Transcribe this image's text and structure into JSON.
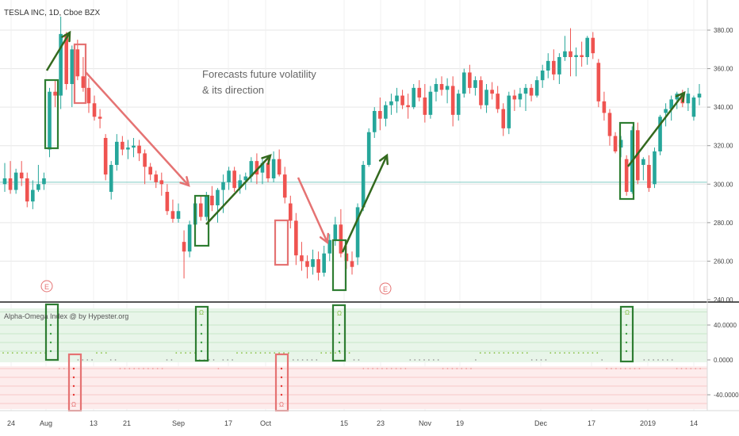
{
  "header": {
    "title": "TESLA INC, 1D, Cboe BZX"
  },
  "annotation": {
    "line1": "Forecasts future volatility",
    "line2": "& its direction"
  },
  "earnings_marker": "E",
  "indicator": {
    "title": "Alpha-Omega Index @ by Hypester.org",
    "alpha_symbol": "Ω",
    "omega_symbol": "Ω"
  },
  "colors": {
    "up": "#26a69a",
    "down": "#ef5350",
    "box_green": "#2e7d32",
    "box_red": "#e57373",
    "arrow_green": "#33691e",
    "arrow_red": "#e57373",
    "grid": "#e6e6e6",
    "price_line": "#80cbc4",
    "zone_green": "#e8f5e9",
    "zone_red": "#fdecec"
  },
  "chart_data": [
    {
      "type": "candlestick",
      "title": "TESLA INC, 1D, Cboe BZX",
      "x_tick_labels": [
        "24",
        "Aug",
        "13",
        "21",
        "Sep",
        "17",
        "Oct",
        "15",
        "23",
        "Nov",
        "19",
        "Dec",
        "17",
        "2019",
        "14"
      ],
      "y_tick_labels": [
        "380.00",
        "360.00",
        "340.00",
        "320.00",
        "300.00",
        "280.00",
        "260.00",
        "240.00"
      ],
      "ylim": [
        238,
        394
      ],
      "reference_line": 301,
      "grid": true,
      "candles": [
        {
          "o": 300,
          "h": 311,
          "l": 296,
          "c": 303
        },
        {
          "o": 303,
          "h": 312,
          "l": 295,
          "c": 297
        },
        {
          "o": 297,
          "h": 308,
          "l": 295,
          "c": 306
        },
        {
          "o": 306,
          "h": 312,
          "l": 299,
          "c": 303
        },
        {
          "o": 303,
          "h": 306,
          "l": 288,
          "c": 291
        },
        {
          "o": 291,
          "h": 302,
          "l": 287,
          "c": 297
        },
        {
          "o": 297,
          "h": 310,
          "l": 296,
          "c": 300
        },
        {
          "o": 300,
          "h": 306,
          "l": 297,
          "c": 303
        },
        {
          "o": 318,
          "h": 350,
          "l": 314,
          "c": 348
        },
        {
          "o": 348,
          "h": 354,
          "l": 340,
          "c": 346
        },
        {
          "o": 346,
          "h": 387,
          "l": 339,
          "c": 378
        },
        {
          "o": 378,
          "h": 379,
          "l": 349,
          "c": 352
        },
        {
          "o": 352,
          "h": 372,
          "l": 340,
          "c": 370
        },
        {
          "o": 370,
          "h": 375,
          "l": 354,
          "c": 356
        },
        {
          "o": 356,
          "h": 366,
          "l": 348,
          "c": 350
        },
        {
          "o": 350,
          "h": 355,
          "l": 337,
          "c": 342
        },
        {
          "o": 342,
          "h": 346,
          "l": 333,
          "c": 335
        },
        {
          "o": 335,
          "h": 339,
          "l": 329,
          "c": 334
        },
        {
          "o": 324,
          "h": 326,
          "l": 302,
          "c": 305
        },
        {
          "o": 296,
          "h": 312,
          "l": 292,
          "c": 310
        },
        {
          "o": 310,
          "h": 326,
          "l": 307,
          "c": 322
        },
        {
          "o": 322,
          "h": 325,
          "l": 315,
          "c": 318
        },
        {
          "o": 318,
          "h": 323,
          "l": 313,
          "c": 319
        },
        {
          "o": 319,
          "h": 324,
          "l": 314,
          "c": 320
        },
        {
          "o": 320,
          "h": 323,
          "l": 312,
          "c": 316
        },
        {
          "o": 316,
          "h": 318,
          "l": 300,
          "c": 309
        },
        {
          "o": 309,
          "h": 311,
          "l": 302,
          "c": 305
        },
        {
          "o": 305,
          "h": 307,
          "l": 298,
          "c": 301
        },
        {
          "o": 302,
          "h": 306,
          "l": 294,
          "c": 300
        },
        {
          "o": 296,
          "h": 300,
          "l": 284,
          "c": 286
        },
        {
          "o": 286,
          "h": 292,
          "l": 280,
          "c": 282
        },
        {
          "o": 282,
          "h": 290,
          "l": 280,
          "c": 286
        },
        {
          "o": 270,
          "h": 276,
          "l": 251,
          "c": 265
        },
        {
          "o": 265,
          "h": 281,
          "l": 262,
          "c": 279
        },
        {
          "o": 279,
          "h": 292,
          "l": 277,
          "c": 290
        },
        {
          "o": 290,
          "h": 294,
          "l": 281,
          "c": 283
        },
        {
          "o": 283,
          "h": 296,
          "l": 281,
          "c": 294
        },
        {
          "o": 294,
          "h": 299,
          "l": 286,
          "c": 289
        },
        {
          "o": 289,
          "h": 298,
          "l": 280,
          "c": 297
        },
        {
          "o": 297,
          "h": 305,
          "l": 285,
          "c": 301
        },
        {
          "o": 301,
          "h": 309,
          "l": 297,
          "c": 307
        },
        {
          "o": 307,
          "h": 309,
          "l": 296,
          "c": 298
        },
        {
          "o": 298,
          "h": 305,
          "l": 295,
          "c": 302
        },
        {
          "o": 302,
          "h": 306,
          "l": 297,
          "c": 304
        },
        {
          "o": 304,
          "h": 314,
          "l": 301,
          "c": 312
        },
        {
          "o": 312,
          "h": 316,
          "l": 300,
          "c": 305
        },
        {
          "o": 306,
          "h": 313,
          "l": 300,
          "c": 311
        },
        {
          "o": 311,
          "h": 315,
          "l": 301,
          "c": 303
        },
        {
          "o": 303,
          "h": 317,
          "l": 301,
          "c": 313
        },
        {
          "o": 313,
          "h": 318,
          "l": 304,
          "c": 305
        },
        {
          "o": 305,
          "h": 309,
          "l": 290,
          "c": 293
        },
        {
          "o": 290,
          "h": 294,
          "l": 277,
          "c": 281
        },
        {
          "o": 281,
          "h": 285,
          "l": 258,
          "c": 263
        },
        {
          "o": 263,
          "h": 270,
          "l": 255,
          "c": 260
        },
        {
          "o": 260,
          "h": 263,
          "l": 251,
          "c": 257
        },
        {
          "o": 257,
          "h": 266,
          "l": 253,
          "c": 261
        },
        {
          "o": 261,
          "h": 265,
          "l": 250,
          "c": 254
        },
        {
          "o": 254,
          "h": 268,
          "l": 252,
          "c": 264
        },
        {
          "o": 264,
          "h": 274,
          "l": 260,
          "c": 271
        },
        {
          "o": 271,
          "h": 283,
          "l": 268,
          "c": 279
        },
        {
          "o": 279,
          "h": 287,
          "l": 262,
          "c": 264
        },
        {
          "o": 264,
          "h": 268,
          "l": 256,
          "c": 260
        },
        {
          "o": 260,
          "h": 265,
          "l": 253,
          "c": 257
        },
        {
          "o": 262,
          "h": 290,
          "l": 258,
          "c": 288
        },
        {
          "o": 288,
          "h": 312,
          "l": 286,
          "c": 310
        },
        {
          "o": 310,
          "h": 329,
          "l": 309,
          "c": 327
        },
        {
          "o": 327,
          "h": 340,
          "l": 324,
          "c": 338
        },
        {
          "o": 338,
          "h": 345,
          "l": 328,
          "c": 334
        },
        {
          "o": 334,
          "h": 343,
          "l": 330,
          "c": 341
        },
        {
          "o": 341,
          "h": 347,
          "l": 336,
          "c": 343
        },
        {
          "o": 343,
          "h": 350,
          "l": 337,
          "c": 346
        },
        {
          "o": 346,
          "h": 349,
          "l": 339,
          "c": 341
        },
        {
          "o": 341,
          "h": 347,
          "l": 334,
          "c": 340
        },
        {
          "o": 340,
          "h": 352,
          "l": 339,
          "c": 350
        },
        {
          "o": 350,
          "h": 354,
          "l": 343,
          "c": 345
        },
        {
          "o": 345,
          "h": 352,
          "l": 332,
          "c": 336
        },
        {
          "o": 336,
          "h": 351,
          "l": 334,
          "c": 348
        },
        {
          "o": 348,
          "h": 355,
          "l": 343,
          "c": 352
        },
        {
          "o": 352,
          "h": 356,
          "l": 346,
          "c": 349
        },
        {
          "o": 349,
          "h": 355,
          "l": 342,
          "c": 351
        },
        {
          "o": 351,
          "h": 356,
          "l": 330,
          "c": 336
        },
        {
          "o": 336,
          "h": 349,
          "l": 333,
          "c": 347
        },
        {
          "o": 347,
          "h": 360,
          "l": 345,
          "c": 358
        },
        {
          "o": 358,
          "h": 362,
          "l": 347,
          "c": 350
        },
        {
          "o": 350,
          "h": 356,
          "l": 346,
          "c": 354
        },
        {
          "o": 354,
          "h": 356,
          "l": 339,
          "c": 341
        },
        {
          "o": 341,
          "h": 352,
          "l": 337,
          "c": 349
        },
        {
          "o": 349,
          "h": 353,
          "l": 344,
          "c": 347
        },
        {
          "o": 347,
          "h": 351,
          "l": 337,
          "c": 339
        },
        {
          "o": 339,
          "h": 342,
          "l": 325,
          "c": 329
        },
        {
          "o": 329,
          "h": 348,
          "l": 326,
          "c": 346
        },
        {
          "o": 346,
          "h": 349,
          "l": 338,
          "c": 344
        },
        {
          "o": 344,
          "h": 350,
          "l": 340,
          "c": 347
        },
        {
          "o": 347,
          "h": 352,
          "l": 338,
          "c": 350
        },
        {
          "o": 350,
          "h": 352,
          "l": 343,
          "c": 346
        },
        {
          "o": 346,
          "h": 356,
          "l": 345,
          "c": 354
        },
        {
          "o": 354,
          "h": 362,
          "l": 350,
          "c": 359
        },
        {
          "o": 359,
          "h": 368,
          "l": 355,
          "c": 364
        },
        {
          "o": 364,
          "h": 370,
          "l": 354,
          "c": 357
        },
        {
          "o": 357,
          "h": 368,
          "l": 352,
          "c": 366
        },
        {
          "o": 366,
          "h": 377,
          "l": 364,
          "c": 369
        },
        {
          "o": 369,
          "h": 381,
          "l": 356,
          "c": 366
        },
        {
          "o": 366,
          "h": 371,
          "l": 356,
          "c": 367
        },
        {
          "o": 367,
          "h": 374,
          "l": 361,
          "c": 366
        },
        {
          "o": 366,
          "h": 377,
          "l": 362,
          "c": 376
        },
        {
          "o": 376,
          "h": 379,
          "l": 365,
          "c": 368
        },
        {
          "o": 363,
          "h": 365,
          "l": 340,
          "c": 343
        },
        {
          "o": 343,
          "h": 348,
          "l": 333,
          "c": 337
        },
        {
          "o": 337,
          "h": 339,
          "l": 320,
          "c": 325
        },
        {
          "o": 325,
          "h": 327,
          "l": 316,
          "c": 317
        },
        {
          "o": 319,
          "h": 325,
          "l": 314,
          "c": 323
        },
        {
          "o": 313,
          "h": 315,
          "l": 294,
          "c": 296
        },
        {
          "o": 296,
          "h": 330,
          "l": 295,
          "c": 328
        },
        {
          "o": 328,
          "h": 332,
          "l": 300,
          "c": 302
        },
        {
          "o": 310,
          "h": 314,
          "l": 302,
          "c": 313
        },
        {
          "o": 310,
          "h": 315,
          "l": 296,
          "c": 298
        },
        {
          "o": 300,
          "h": 319,
          "l": 298,
          "c": 317
        },
        {
          "o": 317,
          "h": 336,
          "l": 315,
          "c": 335
        },
        {
          "o": 337,
          "h": 342,
          "l": 330,
          "c": 339
        },
        {
          "o": 339,
          "h": 346,
          "l": 333,
          "c": 344
        },
        {
          "o": 344,
          "h": 348,
          "l": 339,
          "c": 347
        },
        {
          "o": 347,
          "h": 349,
          "l": 340,
          "c": 342
        },
        {
          "o": 342,
          "h": 350,
          "l": 338,
          "c": 347
        },
        {
          "o": 335,
          "h": 346,
          "l": 333,
          "c": 345
        },
        {
          "o": 345,
          "h": 352,
          "l": 341,
          "c": 347
        }
      ]
    },
    {
      "type": "dot_indicator",
      "title": "Alpha-Omega Index @ by Hypester.org",
      "y_tick_labels": [
        "40.0000",
        "0.0000",
        "-40.0000"
      ],
      "ylim": [
        -65,
        65
      ]
    }
  ]
}
